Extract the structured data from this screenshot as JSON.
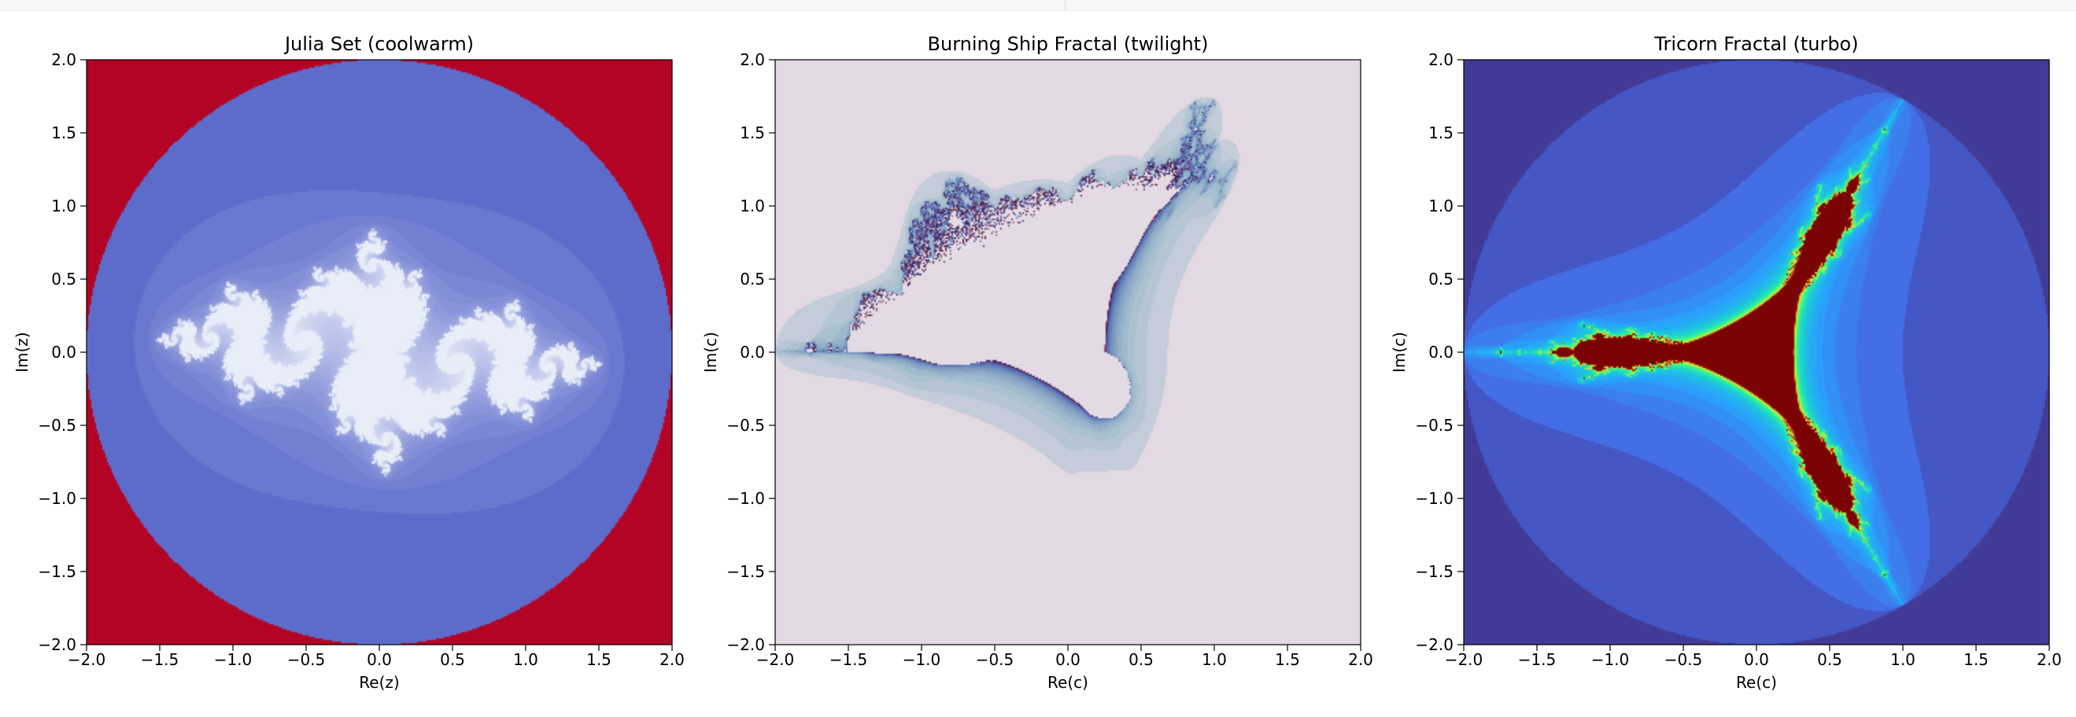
{
  "chart_data": [
    {
      "type": "heatmap",
      "title": "Julia Set (coolwarm)",
      "xlabel": "Re(z)",
      "ylabel": "Im(z)",
      "xlim": [
        -2.0,
        2.0
      ],
      "ylim": [
        -2.0,
        2.0
      ],
      "xticks": [
        "−2.0",
        "−1.5",
        "−1.0",
        "−0.5",
        "0.0",
        "0.5",
        "1.0",
        "1.5",
        "2.0"
      ],
      "yticks": [
        "−2.0",
        "−1.5",
        "−1.0",
        "−0.5",
        "0.0",
        "0.5",
        "1.0",
        "1.5",
        "2.0"
      ],
      "colormap": "coolwarm",
      "fractal": "julia",
      "c": [
        -0.8,
        0.156
      ],
      "escape_radius": 2.0,
      "max_iter": 60,
      "colors": {
        "outside": "#b40426",
        "interior": "#3b4cc0",
        "boundary": "#e8edf8"
      },
      "grid": false
    },
    {
      "type": "heatmap",
      "title": "Burning Ship Fractal (twilight)",
      "xlabel": "Re(c)",
      "ylabel": "Im(c)",
      "xlim": [
        -2.0,
        2.0
      ],
      "ylim": [
        -2.0,
        2.0
      ],
      "xticks": [
        "−2.0",
        "−1.5",
        "−1.0",
        "−0.5",
        "0.0",
        "0.5",
        "1.0",
        "1.5",
        "2.0"
      ],
      "yticks": [
        "−2.0",
        "−1.5",
        "−1.0",
        "−0.5",
        "0.0",
        "0.5",
        "1.0",
        "1.5",
        "2.0"
      ],
      "colormap": "twilight",
      "fractal": "burning-ship",
      "escape_radius": 2.0,
      "max_iter": 70,
      "colors": {
        "background": "#e2d9e2",
        "set": "#e3dae3",
        "edge": "#2f1c4f"
      },
      "grid": false
    },
    {
      "type": "heatmap",
      "title": "Tricorn Fractal (turbo)",
      "xlabel": "Re(c)",
      "ylabel": "Im(c)",
      "xlim": [
        -2.0,
        2.0
      ],
      "ylim": [
        -2.0,
        2.0
      ],
      "xticks": [
        "−2.0",
        "−1.5",
        "−1.0",
        "−0.5",
        "0.0",
        "0.5",
        "1.0",
        "1.5",
        "2.0"
      ],
      "yticks": [
        "−2.0",
        "−1.5",
        "−1.0",
        "−0.5",
        "0.0",
        "0.5",
        "1.0",
        "1.5",
        "2.0"
      ],
      "colormap": "turbo",
      "fractal": "tricorn",
      "escape_radius": 2.0,
      "max_iter": 60,
      "colors": {
        "background": "#30123b",
        "set": "#7a0403"
      },
      "grid": false
    }
  ]
}
